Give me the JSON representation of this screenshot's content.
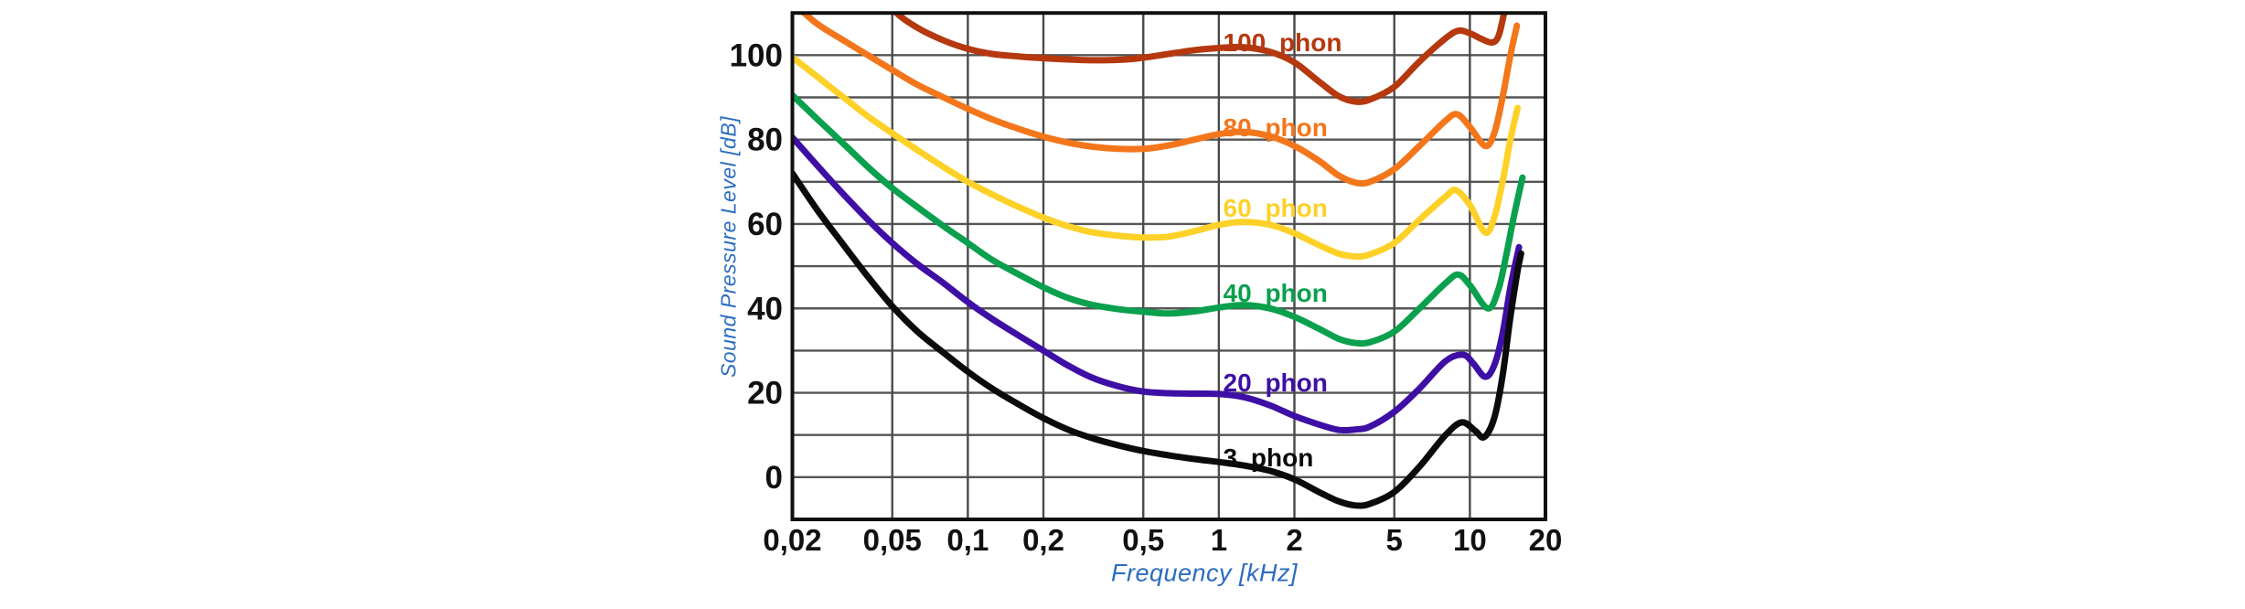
{
  "chart_data": {
    "type": "line",
    "title": "",
    "xlabel": "Frequency [kHz]",
    "ylabel": "Sound Pressure Level [dB]",
    "x_scale": "log",
    "xlim": [
      0.02,
      20
    ],
    "ylim": [
      -10,
      110
    ],
    "grid": true,
    "y_gridline_step_dB": 10,
    "background_color": "#ffffff",
    "axis_title_color": "#2a6cc0",
    "tick_label_color": "#111111",
    "border_color": "#111111",
    "gridline_color": "#555555",
    "x_ticks": [
      {
        "value": 0.02,
        "label": "0,02"
      },
      {
        "value": 0.05,
        "label": "0,05"
      },
      {
        "value": 0.1,
        "label": "0,1"
      },
      {
        "value": 0.2,
        "label": "0,2"
      },
      {
        "value": 0.5,
        "label": "0,5"
      },
      {
        "value": 1,
        "label": "1"
      },
      {
        "value": 2,
        "label": "2"
      },
      {
        "value": 5,
        "label": "5"
      },
      {
        "value": 10,
        "label": "10"
      },
      {
        "value": 20,
        "label": "20"
      }
    ],
    "y_ticks": [
      {
        "value": 100,
        "label": "100"
      },
      {
        "value": 80,
        "label": "80"
      },
      {
        "value": 60,
        "label": "60"
      },
      {
        "value": 40,
        "label": "40"
      },
      {
        "value": 20,
        "label": "20"
      },
      {
        "value": 0,
        "label": "0"
      }
    ],
    "series": [
      {
        "name": "100 phon",
        "color": "#b5380f",
        "label": {
          "text": "100 phon",
          "x_kHz": 1.04,
          "y_dB": 103.1
        },
        "points": [
          [
            0.048,
            113
          ],
          [
            0.052,
            110
          ],
          [
            0.063,
            106.5
          ],
          [
            0.08,
            103.5
          ],
          [
            0.1,
            101.5
          ],
          [
            0.125,
            100.3
          ],
          [
            0.16,
            99.7
          ],
          [
            0.2,
            99.3
          ],
          [
            0.25,
            99.0
          ],
          [
            0.315,
            98.8
          ],
          [
            0.4,
            98.9
          ],
          [
            0.5,
            99.4
          ],
          [
            0.63,
            100.3
          ],
          [
            0.8,
            101.2
          ],
          [
            1,
            101.7
          ],
          [
            1.25,
            101.9
          ],
          [
            1.6,
            100.8
          ],
          [
            2,
            98.3
          ],
          [
            2.5,
            93.8
          ],
          [
            3,
            90.3
          ],
          [
            3.5,
            89.0
          ],
          [
            4,
            89.5
          ],
          [
            5,
            92.5
          ],
          [
            6.3,
            98.5
          ],
          [
            8,
            104.0
          ],
          [
            9,
            105.8
          ],
          [
            10,
            105.2
          ],
          [
            11,
            104.0
          ],
          [
            12.2,
            103.0
          ],
          [
            13,
            104.5
          ],
          [
            13.7,
            110
          ],
          [
            14.2,
            114
          ]
        ]
      },
      {
        "name": "80 phon",
        "color": "#f3761b",
        "label": {
          "text": "80 phon",
          "x_kHz": 1.04,
          "y_dB": 83.0
        },
        "points": [
          [
            0.0205,
            112
          ],
          [
            0.025,
            107.5
          ],
          [
            0.032,
            103.5
          ],
          [
            0.04,
            100
          ],
          [
            0.05,
            96.5
          ],
          [
            0.063,
            93
          ],
          [
            0.08,
            90
          ],
          [
            0.1,
            87.3
          ],
          [
            0.125,
            84.8
          ],
          [
            0.16,
            82.5
          ],
          [
            0.2,
            80.7
          ],
          [
            0.25,
            79.3
          ],
          [
            0.315,
            78.3
          ],
          [
            0.4,
            77.8
          ],
          [
            0.5,
            77.8
          ],
          [
            0.63,
            78.6
          ],
          [
            0.8,
            80.0
          ],
          [
            1,
            81.3
          ],
          [
            1.25,
            81.8
          ],
          [
            1.6,
            80.8
          ],
          [
            2,
            78.5
          ],
          [
            2.5,
            75.0
          ],
          [
            3,
            71.5
          ],
          [
            3.5,
            69.8
          ],
          [
            4,
            70.0
          ],
          [
            5,
            73.0
          ],
          [
            6.3,
            78.5
          ],
          [
            8,
            84.5
          ],
          [
            8.9,
            86.0
          ],
          [
            10,
            83.0
          ],
          [
            11.5,
            78.5
          ],
          [
            12.5,
            81.5
          ],
          [
            13.5,
            90
          ],
          [
            14.5,
            100
          ],
          [
            15.4,
            107
          ]
        ]
      },
      {
        "name": "60 phon",
        "color": "#fdd128",
        "label": {
          "text": "60 phon",
          "x_kHz": 1.04,
          "y_dB": 63.9
        },
        "points": [
          [
            0.02,
            99.5
          ],
          [
            0.025,
            95
          ],
          [
            0.032,
            90
          ],
          [
            0.04,
            85.5
          ],
          [
            0.05,
            81.5
          ],
          [
            0.063,
            77.5
          ],
          [
            0.08,
            73.5
          ],
          [
            0.1,
            70
          ],
          [
            0.125,
            67
          ],
          [
            0.16,
            64
          ],
          [
            0.2,
            61.5
          ],
          [
            0.25,
            59.5
          ],
          [
            0.315,
            58
          ],
          [
            0.4,
            57.2
          ],
          [
            0.5,
            56.8
          ],
          [
            0.63,
            57.0
          ],
          [
            0.8,
            58.3
          ],
          [
            1,
            59.8
          ],
          [
            1.25,
            60.5
          ],
          [
            1.6,
            59.8
          ],
          [
            2,
            57.8
          ],
          [
            2.5,
            55.0
          ],
          [
            3,
            53.0
          ],
          [
            3.5,
            52.3
          ],
          [
            4,
            52.8
          ],
          [
            5,
            55.5
          ],
          [
            6.3,
            61.0
          ],
          [
            8,
            66.5
          ],
          [
            8.8,
            68.0
          ],
          [
            10,
            64.5
          ],
          [
            11.5,
            58.0
          ],
          [
            12.5,
            61.5
          ],
          [
            13.5,
            70
          ],
          [
            14.5,
            80
          ],
          [
            15.5,
            87.5
          ]
        ]
      },
      {
        "name": "40 phon",
        "color": "#0aa04d",
        "label": {
          "text": "40 phon",
          "x_kHz": 1.04,
          "y_dB": 43.7
        },
        "points": [
          [
            0.02,
            90.5
          ],
          [
            0.025,
            85
          ],
          [
            0.032,
            79
          ],
          [
            0.04,
            73.5
          ],
          [
            0.05,
            68.5
          ],
          [
            0.063,
            64
          ],
          [
            0.08,
            59.5
          ],
          [
            0.1,
            55.5
          ],
          [
            0.125,
            51.5
          ],
          [
            0.16,
            48
          ],
          [
            0.2,
            45
          ],
          [
            0.25,
            42.5
          ],
          [
            0.315,
            40.8
          ],
          [
            0.4,
            39.8
          ],
          [
            0.5,
            39.2
          ],
          [
            0.63,
            38.8
          ],
          [
            0.8,
            39.3
          ],
          [
            1,
            40.2
          ],
          [
            1.25,
            40.8
          ],
          [
            1.6,
            40.0
          ],
          [
            2,
            38.0
          ],
          [
            2.5,
            35.2
          ],
          [
            3,
            32.8
          ],
          [
            3.5,
            31.8
          ],
          [
            4,
            32.0
          ],
          [
            5,
            34.5
          ],
          [
            6.3,
            40.0
          ],
          [
            8,
            46.0
          ],
          [
            9,
            48.0
          ],
          [
            10,
            45.5
          ],
          [
            11.8,
            40.0
          ],
          [
            13,
            44.5
          ],
          [
            14,
            53
          ],
          [
            15,
            62
          ],
          [
            16.2,
            71
          ]
        ]
      },
      {
        "name": "20 phon",
        "color": "#3e0fa4",
        "label": {
          "text": "20 phon",
          "x_kHz": 1.04,
          "y_dB": 22.5
        },
        "points": [
          [
            0.02,
            80.5
          ],
          [
            0.025,
            74
          ],
          [
            0.032,
            67
          ],
          [
            0.04,
            61
          ],
          [
            0.05,
            55.5
          ],
          [
            0.063,
            50.5
          ],
          [
            0.08,
            46
          ],
          [
            0.1,
            41.5
          ],
          [
            0.125,
            37.5
          ],
          [
            0.16,
            33.5
          ],
          [
            0.2,
            30
          ],
          [
            0.25,
            26.5
          ],
          [
            0.315,
            23.5
          ],
          [
            0.4,
            21.5
          ],
          [
            0.5,
            20.3
          ],
          [
            0.63,
            19.9
          ],
          [
            0.8,
            19.8
          ],
          [
            1,
            19.7
          ],
          [
            1.25,
            19.0
          ],
          [
            1.6,
            17.0
          ],
          [
            2,
            14.5
          ],
          [
            2.5,
            12.5
          ],
          [
            3,
            11.2
          ],
          [
            3.5,
            11.3
          ],
          [
            4,
            12.0
          ],
          [
            5,
            15.5
          ],
          [
            6.3,
            21.0
          ],
          [
            8,
            27.5
          ],
          [
            9.4,
            29.0
          ],
          [
            10.3,
            27.0
          ],
          [
            11.5,
            23.8
          ],
          [
            12.5,
            26.5
          ],
          [
            13.5,
            34
          ],
          [
            14.5,
            45
          ],
          [
            15.7,
            54.5
          ]
        ]
      },
      {
        "name": "3 phon",
        "color": "#0b0b0b",
        "label": {
          "text": "3 phon",
          "x_kHz": 1.04,
          "y_dB": 4.7
        },
        "points": [
          [
            0.02,
            72
          ],
          [
            0.025,
            63.5
          ],
          [
            0.032,
            55
          ],
          [
            0.04,
            47.5
          ],
          [
            0.05,
            40.5
          ],
          [
            0.063,
            34.5
          ],
          [
            0.08,
            29.5
          ],
          [
            0.1,
            25
          ],
          [
            0.125,
            21
          ],
          [
            0.16,
            17.2
          ],
          [
            0.2,
            14
          ],
          [
            0.25,
            11.3
          ],
          [
            0.315,
            9.2
          ],
          [
            0.4,
            7.5
          ],
          [
            0.5,
            6.2
          ],
          [
            0.63,
            5.2
          ],
          [
            0.8,
            4.3
          ],
          [
            1,
            3.6
          ],
          [
            1.25,
            2.8
          ],
          [
            1.6,
            1.5
          ],
          [
            2,
            -0.5
          ],
          [
            2.5,
            -3.5
          ],
          [
            3,
            -5.7
          ],
          [
            3.5,
            -6.7
          ],
          [
            4,
            -6.3
          ],
          [
            5,
            -3.5
          ],
          [
            6.3,
            2.5
          ],
          [
            8,
            10.0
          ],
          [
            9.3,
            13.0
          ],
          [
            10.5,
            11.0
          ],
          [
            11.4,
            9.5
          ],
          [
            12.5,
            14
          ],
          [
            13.5,
            24
          ],
          [
            14.5,
            38
          ],
          [
            15.5,
            49
          ],
          [
            16,
            53
          ]
        ]
      }
    ]
  }
}
